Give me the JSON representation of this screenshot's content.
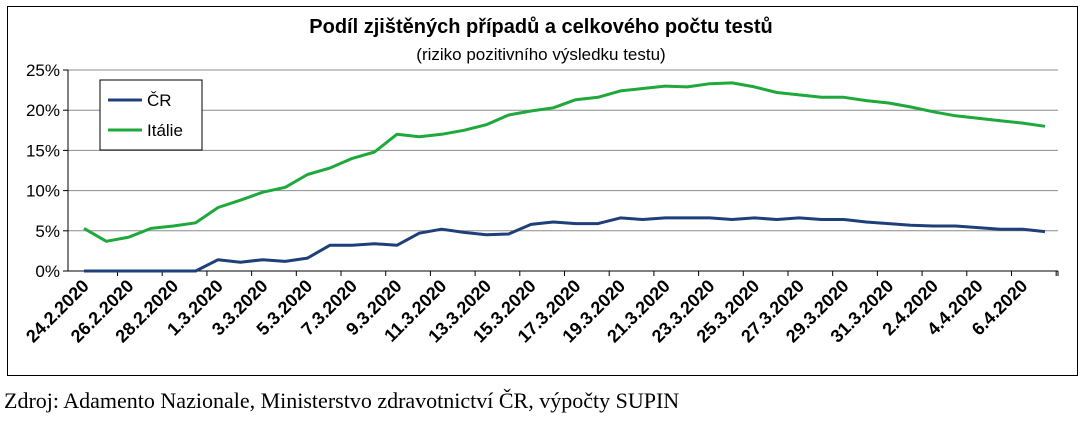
{
  "chart_data": {
    "type": "line",
    "title": "Podíl zjištěných případů a celkového počtu testů",
    "subtitle": "(riziko  pozitivního  výsledku testu)",
    "ylim": [
      0,
      25
    ],
    "yticks": [
      "0%",
      "5%",
      "10%",
      "15%",
      "20%",
      "25%"
    ],
    "grid": true,
    "legend_position": "top-left",
    "x": [
      "24.2.2020",
      "25.2.2020",
      "26.2.2020",
      "27.2.2020",
      "28.2.2020",
      "29.2.2020",
      "1.3.2020",
      "2.3.2020",
      "3.3.2020",
      "4.3.2020",
      "5.3.2020",
      "6.3.2020",
      "7.3.2020",
      "8.3.2020",
      "9.3.2020",
      "10.3.2020",
      "11.3.2020",
      "12.3.2020",
      "13.3.2020",
      "14.3.2020",
      "15.3.2020",
      "16.3.2020",
      "17.3.2020",
      "18.3.2020",
      "19.3.2020",
      "20.3.2020",
      "21.3.2020",
      "22.3.2020",
      "23.3.2020",
      "24.3.2020",
      "25.3.2020",
      "26.3.2020",
      "27.3.2020",
      "28.3.2020",
      "29.3.2020",
      "30.3.2020",
      "31.3.2020",
      "1.4.2020",
      "2.4.2020",
      "3.4.2020",
      "4.4.2020",
      "5.4.2020",
      "6.4.2020",
      "7.4.2020"
    ],
    "xtick_labels": [
      "24.2.2020",
      "26.2.2020",
      "28.2.2020",
      "1.3.2020",
      "3.3.2020",
      "5.3.2020",
      "7.3.2020",
      "9.3.2020",
      "11.3.2020",
      "13.3.2020",
      "15.3.2020",
      "17.3.2020",
      "19.3.2020",
      "21.3.2020",
      "23.3.2020",
      "25.3.2020",
      "27.3.2020",
      "29.3.2020",
      "31.3.2020",
      "2.4.2020",
      "4.4.2020",
      "6.4.2020"
    ],
    "series": [
      {
        "name": "ČR",
        "color": "#1f3f7a",
        "values": [
          0,
          0,
          0,
          0,
          0,
          0,
          1.4,
          1.1,
          1.4,
          1.2,
          1.6,
          3.2,
          3.2,
          3.4,
          3.2,
          4.7,
          5.2,
          4.8,
          4.5,
          4.6,
          5.8,
          6.1,
          5.9,
          5.9,
          6.6,
          6.4,
          6.6,
          6.6,
          6.6,
          6.4,
          6.6,
          6.4,
          6.6,
          6.4,
          6.4,
          6.1,
          5.9,
          5.7,
          5.6,
          5.6,
          5.4,
          5.2,
          5.2,
          4.9
        ]
      },
      {
        "name": "Itálie",
        "color": "#1fa83c",
        "values": [
          5.3,
          3.7,
          4.2,
          5.3,
          5.6,
          6.0,
          7.9,
          8.8,
          9.8,
          10.4,
          12.0,
          12.8,
          14.0,
          14.8,
          17.0,
          16.7,
          17.0,
          17.5,
          18.2,
          19.4,
          19.9,
          20.3,
          21.3,
          21.6,
          22.4,
          22.7,
          23.0,
          22.9,
          23.3,
          23.4,
          22.9,
          22.2,
          21.9,
          21.6,
          21.6,
          21.2,
          20.9,
          20.4,
          19.8,
          19.3,
          19.0,
          18.7,
          18.4,
          18.0
        ]
      }
    ]
  },
  "source_note": "Zdroj: Adamento Nazionale, Ministerstvo zdravotnictví ČR, výpočty SUPIN"
}
